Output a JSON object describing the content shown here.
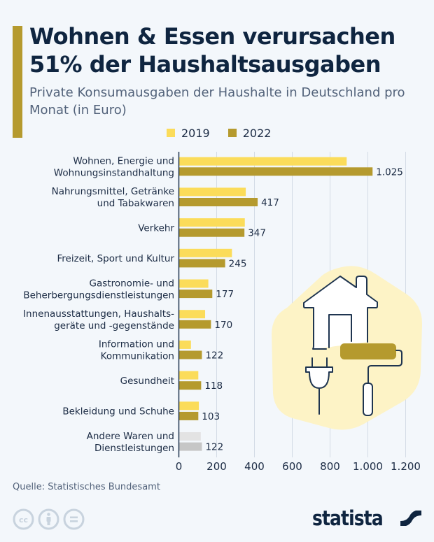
{
  "header": {
    "title": "Wohnen & Essen verursachen 51% der Haushaltsausgaben",
    "subtitle": "Private Konsumausgaben der Haushalte in Deutschland pro Monat (in Euro)"
  },
  "legend": [
    {
      "label": "2019",
      "color": "#fbdc5a"
    },
    {
      "label": "2022",
      "color": "#b59a2e"
    }
  ],
  "chart_data": {
    "type": "bar",
    "orientation": "horizontal",
    "title": "Wohnen & Essen verursachen 51% der Haushaltsausgaben",
    "subtitle": "Private Konsumausgaben der Haushalte in Deutschland pro Monat (in Euro)",
    "xlabel": "",
    "ylabel": "",
    "xlim": [
      0,
      1200
    ],
    "ticks": [
      0,
      200,
      400,
      600,
      800,
      1000,
      1200
    ],
    "tick_labels": [
      "0",
      "200",
      "400",
      "600",
      "800",
      "1.000",
      "1.200"
    ],
    "grid": true,
    "legend_position": "top-center",
    "categories": [
      [
        "Wohnen, Energie und",
        "Wohnungsinstandhaltung"
      ],
      [
        "Nahrungsmittel, Getränke",
        "und Tabakwaren"
      ],
      [
        "Verkehr"
      ],
      [
        "Freizeit, Sport und Kultur"
      ],
      [
        "Gastronomie- und",
        "Beherbergungsdienstleistungen"
      ],
      [
        "Innenausstattungen, Haushalts-",
        "geräte und -gegenstände"
      ],
      [
        "Information und",
        "Kommunikation"
      ],
      [
        "Gesundheit"
      ],
      [
        "Bekleidung und Schuhe"
      ],
      [
        "Andere Waren und",
        "Dienstleistungen"
      ]
    ],
    "series": [
      {
        "name": "2019",
        "color": "#fbdc5a",
        "values": [
          888,
          354,
          349,
          281,
          156,
          139,
          64,
          103,
          106,
          116
        ]
      },
      {
        "name": "2022",
        "color": "#b59a2e",
        "values": [
          1025,
          417,
          347,
          245,
          177,
          170,
          122,
          118,
          103,
          122
        ],
        "value_labels": [
          "1.025",
          "417",
          "347",
          "245",
          "177",
          "170",
          "122",
          "118",
          "103",
          "122"
        ]
      }
    ],
    "other_category_colors": {
      "2019": "#e3e3e3",
      "2022": "#c6c6c6"
    }
  },
  "footer": {
    "source": "Quelle: Statistisches Bundesamt",
    "logo_text": "statista"
  }
}
